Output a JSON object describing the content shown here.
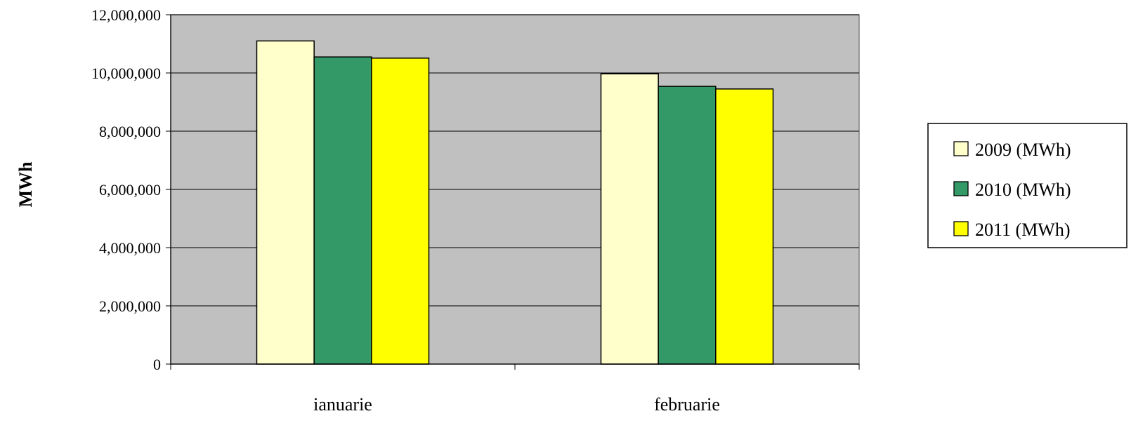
{
  "chart_data": {
    "type": "bar",
    "title": "",
    "xlabel": "",
    "ylabel": "MWh",
    "categories": [
      "ianuarie",
      "februarie"
    ],
    "series": [
      {
        "name": "2009 (MWh)",
        "values": [
          11100000,
          9970000
        ],
        "color": "#FFFFCC"
      },
      {
        "name": "2010 (MWh)",
        "values": [
          10550000,
          9540000
        ],
        "color": "#339966"
      },
      {
        "name": "2011 (MWh)",
        "values": [
          10510000,
          9450000
        ],
        "color": "#FFFF00"
      }
    ],
    "ylim": [
      0,
      12000000
    ],
    "yticks": [
      0,
      2000000,
      4000000,
      6000000,
      8000000,
      10000000,
      12000000
    ],
    "ytick_labels": [
      "0",
      "2,000,000",
      "4,000,000",
      "6,000,000",
      "8,000,000",
      "10,000,000",
      "12,000,000"
    ],
    "grid": true,
    "plot_background": "#C0C0C0",
    "legend_position": "right"
  }
}
